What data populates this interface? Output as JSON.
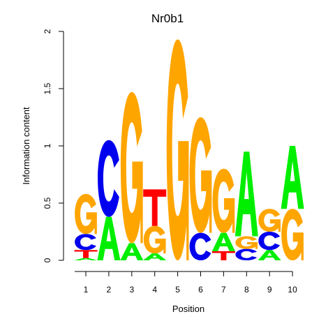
{
  "chart_data": {
    "type": "sequence-logo",
    "title": "Nr0b1",
    "xlabel": "Position",
    "ylabel": "Information content",
    "ylim": [
      0,
      2
    ],
    "yticks": [
      {
        "value": 0,
        "label": "0"
      },
      {
        "value": 0.5,
        "label": "0.5"
      },
      {
        "value": 1,
        "label": "1"
      },
      {
        "value": 1.5,
        "label": "1.5"
      },
      {
        "value": 2,
        "label": "2"
      }
    ],
    "colors": {
      "A": "#00ee00",
      "C": "#0000ee",
      "G": "#ffa500",
      "T": "#ff0000"
    },
    "positions": [
      {
        "label": "1",
        "stack": [
          {
            "letter": "A",
            "height": 0.02
          },
          {
            "letter": "T",
            "height": 0.07
          },
          {
            "letter": "C",
            "height": 0.14
          },
          {
            "letter": "G",
            "height": 0.35
          }
        ]
      },
      {
        "label": "2",
        "stack": [
          {
            "letter": "A",
            "height": 0.38
          },
          {
            "letter": "C",
            "height": 0.67
          }
        ]
      },
      {
        "label": "3",
        "stack": [
          {
            "letter": "A",
            "height": 0.15
          },
          {
            "letter": "G",
            "height": 1.32
          }
        ]
      },
      {
        "label": "4",
        "stack": [
          {
            "letter": "A",
            "height": 0.06
          },
          {
            "letter": "G",
            "height": 0.24
          },
          {
            "letter": "T",
            "height": 0.32
          }
        ]
      },
      {
        "label": "5",
        "stack": [
          {
            "letter": "G",
            "height": 1.93
          }
        ]
      },
      {
        "label": "6",
        "stack": [
          {
            "letter": "C",
            "height": 0.24
          },
          {
            "letter": "G",
            "height": 1.01
          }
        ]
      },
      {
        "label": "7",
        "stack": [
          {
            "letter": "T",
            "height": 0.08
          },
          {
            "letter": "A",
            "height": 0.16
          },
          {
            "letter": "G",
            "height": 0.56
          }
        ]
      },
      {
        "label": "8",
        "stack": [
          {
            "letter": "C",
            "height": 0.1
          },
          {
            "letter": "G",
            "height": 0.11
          },
          {
            "letter": "A",
            "height": 0.74
          }
        ]
      },
      {
        "label": "9",
        "stack": [
          {
            "letter": "A",
            "height": 0.09
          },
          {
            "letter": "C",
            "height": 0.16
          },
          {
            "letter": "G",
            "height": 0.2
          }
        ]
      },
      {
        "label": "10",
        "stack": [
          {
            "letter": "G",
            "height": 0.45
          },
          {
            "letter": "A",
            "height": 0.55
          }
        ]
      }
    ]
  }
}
